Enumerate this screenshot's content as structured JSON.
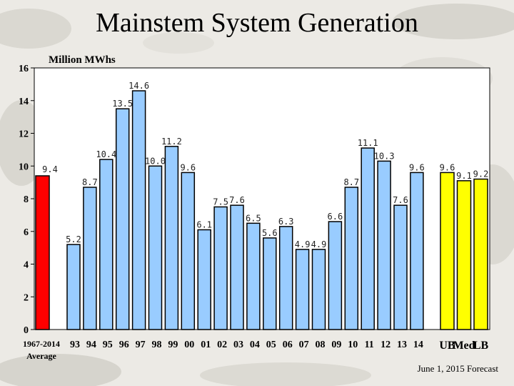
{
  "title": "Mainstem System Generation",
  "unit_label": "Million MWhs",
  "footer": "June 1, 2015 Forecast",
  "colors": {
    "average": "#ff0000",
    "history": "#99ccff",
    "forecast": "#ffff00"
  },
  "chart_data": {
    "type": "bar",
    "title": "Mainstem System Generation",
    "ylabel": "Million MWhs",
    "xlabel": "",
    "ylim": [
      0,
      16
    ],
    "yticks": [
      0,
      2,
      4,
      6,
      8,
      10,
      12,
      14,
      16
    ],
    "grid": false,
    "legend": "none",
    "categories": [
      "1967-2014 Average",
      "93",
      "94",
      "95",
      "96",
      "97",
      "98",
      "99",
      "00",
      "01",
      "02",
      "03",
      "04",
      "05",
      "06",
      "07",
      "08",
      "09",
      "10",
      "11",
      "12",
      "13",
      "14",
      "UB",
      "Med",
      "LB"
    ],
    "category_lines": [
      [
        "1967-2014",
        "Average"
      ]
    ],
    "values": [
      9.4,
      5.2,
      8.7,
      10.4,
      13.5,
      14.6,
      10.0,
      11.2,
      9.6,
      6.1,
      7.5,
      7.6,
      6.5,
      5.6,
      6.3,
      4.9,
      4.9,
      6.6,
      8.7,
      11.1,
      10.3,
      7.6,
      9.6,
      9.6,
      9.1,
      9.2
    ],
    "labels": [
      "9.4",
      "5.2",
      "8.7",
      "10.4",
      "13.5",
      "14.6",
      "10.0",
      "11.2",
      "9.6",
      "6.1",
      "7.5",
      "7.6",
      "6.5",
      "5.6",
      "6.3",
      "4.9",
      "4.9",
      "6.6",
      "8.7",
      "11.1",
      "10.3",
      "7.6",
      "9.6",
      "9.6",
      "9.1",
      "9.2"
    ],
    "groups": [
      "average",
      "history",
      "history",
      "history",
      "history",
      "history",
      "history",
      "history",
      "history",
      "history",
      "history",
      "history",
      "history",
      "history",
      "history",
      "history",
      "history",
      "history",
      "history",
      "history",
      "history",
      "history",
      "history",
      "forecast",
      "forecast",
      "forecast"
    ]
  }
}
